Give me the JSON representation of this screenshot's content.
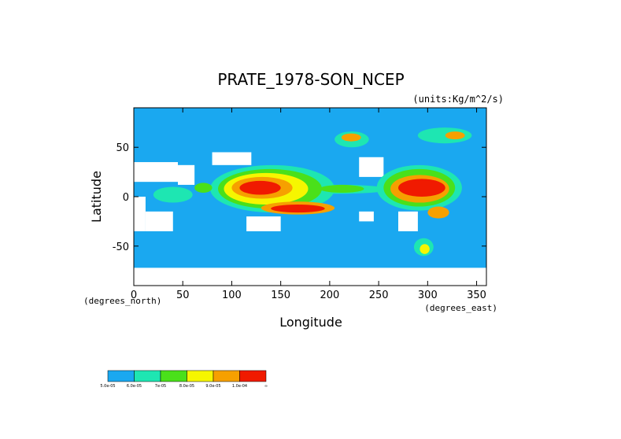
{
  "chart_data": {
    "type": "heatmap",
    "title": "PRATE_1978-SON_NCEP",
    "units": "(units:Kg/m^2/s)",
    "xlabel": "Longitude",
    "ylabel": "Latitude",
    "x_units": "(degrees_east)",
    "y_units": "(degrees_north)",
    "xlim": [
      0,
      360
    ],
    "ylim": [
      -90,
      90
    ],
    "x_ticks": [
      "0",
      "50",
      "100",
      "150",
      "200",
      "250",
      "300",
      "350"
    ],
    "x_tick_values": [
      0,
      50,
      100,
      150,
      200,
      250,
      300,
      350
    ],
    "y_ticks": [
      "50",
      "0",
      "-50"
    ],
    "y_tick_values": [
      50,
      0,
      -50
    ],
    "colorbar": {
      "colors": [
        "#1aa8f0",
        "#1ee6b2",
        "#4ae01a",
        "#f6f600",
        "#f6a000",
        "#f01a00"
      ],
      "labels": [
        "5.0e-05",
        "6.0e-05",
        "7e-05",
        "8.0e-05",
        "9.0e-05",
        "1.0e-04",
        "∞"
      ]
    },
    "background_color": "#1aa8f0",
    "missing_color": "#ffffff",
    "regions": [
      {
        "level": 6,
        "lon": [
          108,
          150
        ],
        "lat": [
          2,
          16
        ]
      },
      {
        "level": 5,
        "lon": [
          100,
          162
        ],
        "lat": [
          -2,
          20
        ]
      },
      {
        "level": 4,
        "lon": [
          92,
          178
        ],
        "lat": [
          -8,
          24
        ]
      },
      {
        "level": 3,
        "lon": [
          86,
          192
        ],
        "lat": [
          -12,
          28
        ]
      },
      {
        "level": 2,
        "lon": [
          78,
          205
        ],
        "lat": [
          -16,
          32
        ]
      },
      {
        "level": 6,
        "lon": [
          140,
          195
        ],
        "lat": [
          -16,
          -8
        ]
      },
      {
        "level": 5,
        "lon": [
          130,
          205
        ],
        "lat": [
          -18,
          -5
        ]
      },
      {
        "level": 6,
        "lon": [
          270,
          318
        ],
        "lat": [
          0,
          18
        ]
      },
      {
        "level": 5,
        "lon": [
          262,
          322
        ],
        "lat": [
          -6,
          22
        ]
      },
      {
        "level": 3,
        "lon": [
          255,
          328
        ],
        "lat": [
          -10,
          28
        ]
      },
      {
        "level": 2,
        "lon": [
          248,
          335
        ],
        "lat": [
          -14,
          32
        ]
      },
      {
        "level": 5,
        "lon": [
          300,
          322
        ],
        "lat": [
          -22,
          -10
        ]
      },
      {
        "level": 3,
        "lon": [
          190,
          235
        ],
        "lat": [
          4,
          12
        ]
      },
      {
        "level": 2,
        "lon": [
          160,
          260
        ],
        "lat": [
          3,
          12
        ]
      },
      {
        "level": 3,
        "lon": [
          62,
          80
        ],
        "lat": [
          4,
          14
        ]
      },
      {
        "level": 2,
        "lon": [
          20,
          60
        ],
        "lat": [
          -6,
          10
        ]
      },
      {
        "level": 5,
        "lon": [
          212,
          232
        ],
        "lat": [
          56,
          64
        ]
      },
      {
        "level": 2,
        "lon": [
          205,
          240
        ],
        "lat": [
          50,
          66
        ]
      },
      {
        "level": 5,
        "lon": [
          318,
          338
        ],
        "lat": [
          58,
          66
        ]
      },
      {
        "level": 2,
        "lon": [
          290,
          345
        ],
        "lat": [
          54,
          70
        ]
      },
      {
        "level": 4,
        "lon": [
          292,
          302
        ],
        "lat": [
          -58,
          -48
        ]
      },
      {
        "level": 2,
        "lon": [
          286,
          306
        ],
        "lat": [
          -60,
          -42
        ]
      }
    ],
    "dry_regions": [
      {
        "lon": [
          0,
          45
        ],
        "lat": [
          15,
          35
        ]
      },
      {
        "lon": [
          0,
          12
        ],
        "lat": [
          -35,
          0
        ]
      },
      {
        "lon": [
          12,
          40
        ],
        "lat": [
          -35,
          -15
        ]
      },
      {
        "lon": [
          45,
          62
        ],
        "lat": [
          12,
          32
        ]
      },
      {
        "lon": [
          115,
          150
        ],
        "lat": [
          -35,
          -20
        ]
      },
      {
        "lon": [
          230,
          255
        ],
        "lat": [
          20,
          40
        ]
      },
      {
        "lon": [
          270,
          290
        ],
        "lat": [
          -35,
          -15
        ]
      },
      {
        "lon": [
          0,
          360
        ],
        "lat": [
          -90,
          -72
        ]
      },
      {
        "lon": [
          80,
          120
        ],
        "lat": [
          32,
          45
        ]
      },
      {
        "lon": [
          230,
          245
        ],
        "lat": [
          -25,
          -15
        ]
      }
    ]
  }
}
